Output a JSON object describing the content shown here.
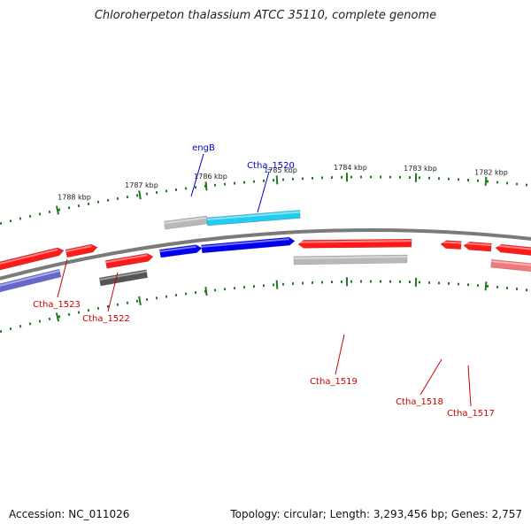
{
  "title": "Chloroherpeton thalassium ATCC 35110, complete genome",
  "footer": {
    "accession": "Accession: NC_011026",
    "summary": "Topology: circular; Length: 3,293,456 bp; Genes: 2,757"
  },
  "colors": {
    "background": "#ffffff",
    "backbone": "#7a7a7a",
    "tick": "#1b7a1b",
    "forward_gene": "#ff1a1a",
    "reverse_label": "#cc0000",
    "blue_label": "#0000cc",
    "blue_gene": "#0000ee",
    "cyan_gene": "#22ccee",
    "gray_gene": "#b8b8b8",
    "dark_gray_gene": "#555555",
    "purple_gene": "#6666cc",
    "pink_gene": "#ee7a7a"
  },
  "ruler_labels": [
    "1788 kbp",
    "1787 kbp",
    "1786 kbp",
    "1785 kbp",
    "1784 kbp",
    "1783 kbp",
    "1782 kbp"
  ],
  "gene_labels": [
    {
      "text": "engB",
      "color": "blue"
    },
    {
      "text": "Ctha_1520",
      "color": "blue"
    },
    {
      "text": "Ctha_1523",
      "color": "red"
    },
    {
      "text": "Ctha_1522",
      "color": "red"
    },
    {
      "text": "Ctha_1519",
      "color": "red"
    },
    {
      "text": "Ctha_1518",
      "color": "red"
    },
    {
      "text": "Ctha_1517",
      "color": "red"
    }
  ]
}
